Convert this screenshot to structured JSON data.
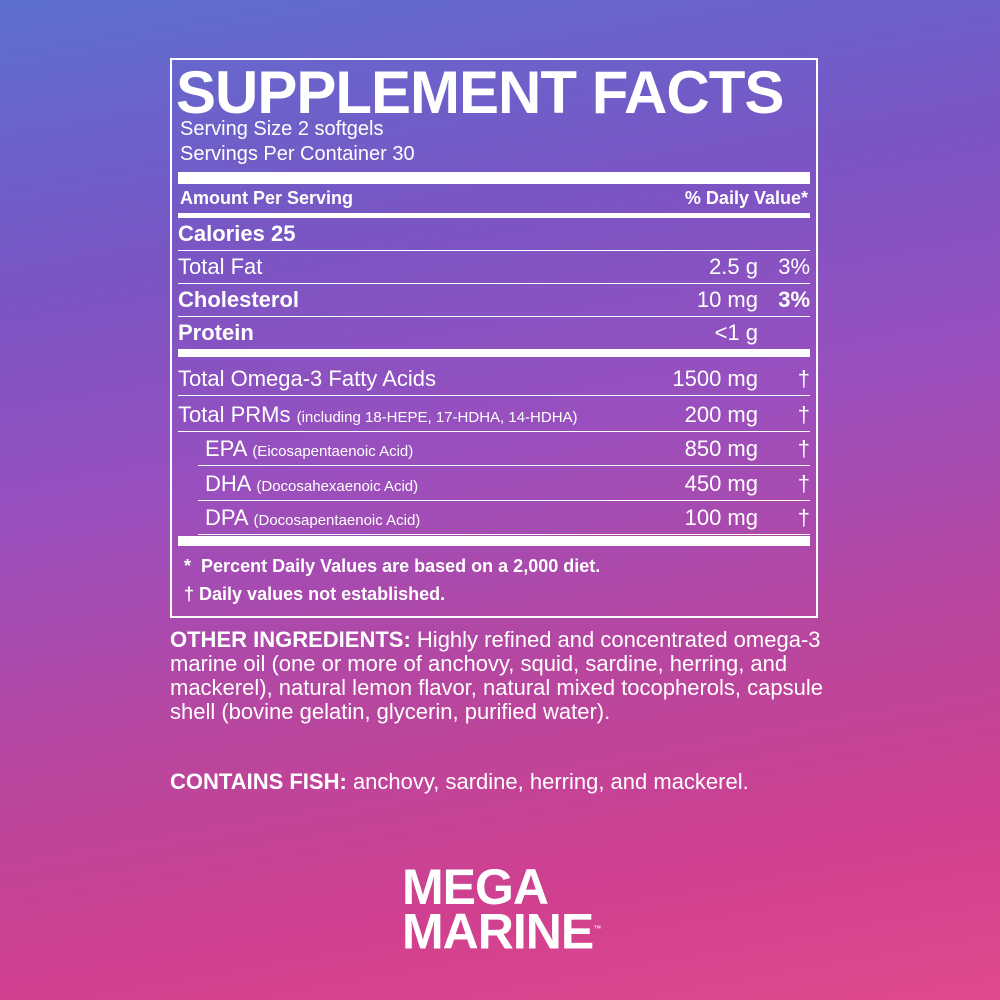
{
  "header": {
    "title": "SUPPLEMENT FACTS",
    "serving_size": "Serving Size 2 softgels",
    "servings_per_container": "Servings Per Container 30"
  },
  "table": {
    "header": [
      "Amount Per Serving",
      "% Daily Value*"
    ],
    "calories": {
      "name": "Calories",
      "amount": "25"
    },
    "rows": [
      {
        "name": "Total Fat",
        "amount": "2.5 g",
        "dv": "3%",
        "bold": false
      },
      {
        "name": "Cholesterol",
        "amount": "10 mg",
        "dv": "3%",
        "bold": true
      },
      {
        "name": "Protein",
        "amount": "<1 g",
        "bold": true
      }
    ],
    "rows2": [
      {
        "name": "Total Omega-3 Fatty Acids",
        "amount": "1500 mg",
        "dv": "†",
        "indent": false
      },
      {
        "name": "Total PRMs",
        "note": "(including 18-HEPE, 17-HDHA, 14-HDHA)",
        "amount": "200 mg",
        "dv": "†",
        "indent": false
      },
      {
        "name": "EPA",
        "note": "(Eicosapentaenoic Acid)",
        "amount": "850 mg",
        "dv": "†",
        "indent": true
      },
      {
        "name": "DHA",
        "note": "(Docosahexaenoic Acid)",
        "amount": "450 mg",
        "dv": "†",
        "indent": true
      },
      {
        "name": "DPA",
        "note": "(Docosapentaenoic Acid)",
        "amount": "100 mg",
        "dv": "†",
        "indent": true
      }
    ],
    "footnotes": [
      {
        "symbol": "*",
        "text": "Percent Daily Values are based on a 2,000 diet."
      },
      {
        "symbol": "†",
        "text": "Daily values not established."
      }
    ]
  },
  "other_ingredients": {
    "label": "OTHER INGREDIENTS:",
    "text": "Highly refined and concentrated omega-3 marine oil (one or more of anchovy, squid, sardine, herring, and mackerel), natural lemon flavor, natural mixed tocopherols, capsule shell (bovine gelatin, glycerin, purified water)."
  },
  "contains": {
    "label": "CONTAINS FISH:",
    "text": "anchovy, sardine, herring, and mackerel."
  },
  "brand": {
    "line1": "MEGA",
    "line2": "MARINE",
    "mark": "™"
  }
}
